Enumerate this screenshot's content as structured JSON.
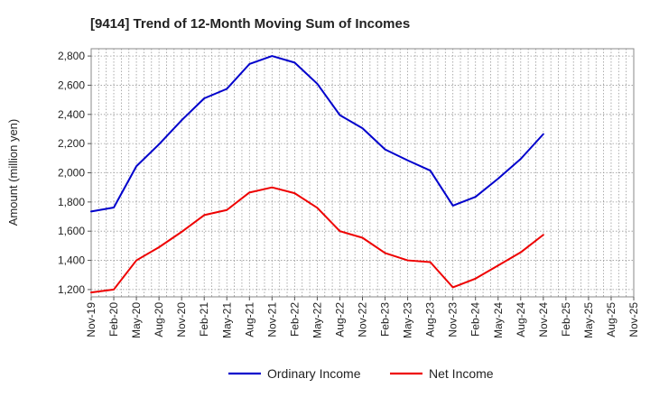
{
  "chart_data": {
    "type": "line",
    "title": "[9414]  Trend of 12-Month Moving Sum of Incomes",
    "xlabel": "",
    "ylabel": "Amount (million yen)",
    "ylim": [
      1150,
      2850
    ],
    "yticks": [
      1200,
      1400,
      1600,
      1800,
      2000,
      2200,
      2400,
      2600,
      2800
    ],
    "ytick_labels": [
      "1,200",
      "1,400",
      "1,600",
      "1,800",
      "2,000",
      "2,200",
      "2,400",
      "2,600",
      "2,800"
    ],
    "grid": true,
    "legend_position": "bottom",
    "categories": [
      "Nov-19",
      "Dec-19",
      "Jan-20",
      "Feb-20",
      "Mar-20",
      "Apr-20",
      "May-20",
      "Jun-20",
      "Jul-20",
      "Aug-20",
      "Sep-20",
      "Oct-20",
      "Nov-20",
      "Dec-20",
      "Jan-21",
      "Feb-21",
      "Mar-21",
      "Apr-21",
      "May-21",
      "Jun-21",
      "Jul-21",
      "Aug-21",
      "Sep-21",
      "Oct-21",
      "Nov-21",
      "Dec-21",
      "Jan-22",
      "Feb-22",
      "Mar-22",
      "Apr-22",
      "May-22",
      "Jun-22",
      "Jul-22",
      "Aug-22",
      "Sep-22",
      "Oct-22",
      "Nov-22",
      "Dec-22",
      "Jan-23",
      "Feb-23",
      "Mar-23",
      "Apr-23",
      "May-23",
      "Jun-23",
      "Jul-23",
      "Aug-23",
      "Sep-23",
      "Oct-23",
      "Nov-23",
      "Dec-23",
      "Jan-24",
      "Feb-24",
      "Mar-24",
      "Apr-24",
      "May-24",
      "Jun-24",
      "Jul-24",
      "Aug-24",
      "Sep-24",
      "Oct-24",
      "Nov-24",
      "Dec-24",
      "Jan-25",
      "Feb-25",
      "Mar-25",
      "Apr-25",
      "May-25",
      "Jun-25",
      "Jul-25",
      "Aug-25",
      "Sep-25",
      "Oct-25",
      "Nov-25"
    ],
    "tick_labels": [
      "Nov-19",
      "Feb-20",
      "May-20",
      "Aug-20",
      "Nov-20",
      "Feb-21",
      "May-21",
      "Aug-21",
      "Nov-21",
      "Feb-22",
      "May-22",
      "Aug-22",
      "Nov-22",
      "Feb-23",
      "May-23",
      "Aug-23",
      "Nov-23",
      "Feb-24",
      "May-24",
      "Aug-24",
      "Nov-24",
      "Feb-25",
      "May-25",
      "Aug-25",
      "Nov-25"
    ],
    "series": [
      {
        "name": "Ordinary Income",
        "color": "#0000cc",
        "points": [
          {
            "x": "Nov-19",
            "y": 1735
          },
          {
            "x": "Feb-20",
            "y": 1762
          },
          {
            "x": "May-20",
            "y": 2045
          },
          {
            "x": "Aug-20",
            "y": 2195
          },
          {
            "x": "Nov-20",
            "y": 2360
          },
          {
            "x": "Feb-21",
            "y": 2510
          },
          {
            "x": "May-21",
            "y": 2575
          },
          {
            "x": "Aug-21",
            "y": 2745
          },
          {
            "x": "Nov-21",
            "y": 2800
          },
          {
            "x": "Feb-22",
            "y": 2755
          },
          {
            "x": "May-22",
            "y": 2610
          },
          {
            "x": "Aug-22",
            "y": 2395
          },
          {
            "x": "Nov-22",
            "y": 2305
          },
          {
            "x": "Feb-23",
            "y": 2160
          },
          {
            "x": "May-23",
            "y": 2085
          },
          {
            "x": "Aug-23",
            "y": 2015
          },
          {
            "x": "Nov-23",
            "y": 1775
          },
          {
            "x": "Feb-24",
            "y": 1835
          },
          {
            "x": "May-24",
            "y": 1960
          },
          {
            "x": "Aug-24",
            "y": 2095
          },
          {
            "x": "Nov-24",
            "y": 2265
          }
        ]
      },
      {
        "name": "Net Income",
        "color": "#ee0000",
        "points": [
          {
            "x": "Nov-19",
            "y": 1180
          },
          {
            "x": "Feb-20",
            "y": 1200
          },
          {
            "x": "May-20",
            "y": 1400
          },
          {
            "x": "Aug-20",
            "y": 1490
          },
          {
            "x": "Nov-20",
            "y": 1595
          },
          {
            "x": "Feb-21",
            "y": 1710
          },
          {
            "x": "May-21",
            "y": 1745
          },
          {
            "x": "Aug-21",
            "y": 1865
          },
          {
            "x": "Nov-21",
            "y": 1900
          },
          {
            "x": "Feb-22",
            "y": 1860
          },
          {
            "x": "May-22",
            "y": 1760
          },
          {
            "x": "Aug-22",
            "y": 1600
          },
          {
            "x": "Nov-22",
            "y": 1555
          },
          {
            "x": "Feb-23",
            "y": 1450
          },
          {
            "x": "May-23",
            "y": 1400
          },
          {
            "x": "Aug-23",
            "y": 1388
          },
          {
            "x": "Nov-23",
            "y": 1215
          },
          {
            "x": "Feb-24",
            "y": 1275
          },
          {
            "x": "May-24",
            "y": 1365
          },
          {
            "x": "Aug-24",
            "y": 1455
          },
          {
            "x": "Nov-24",
            "y": 1575
          }
        ]
      }
    ]
  }
}
